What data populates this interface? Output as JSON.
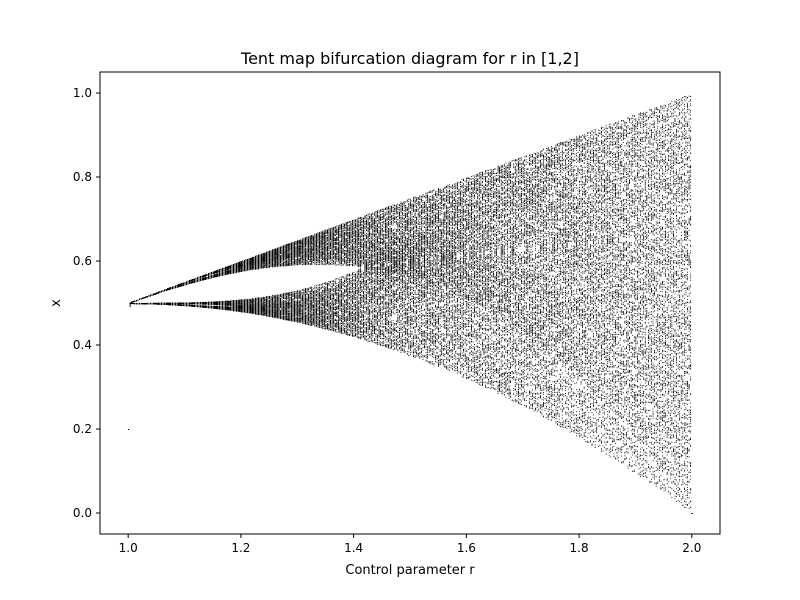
{
  "chart_data": {
    "type": "scatter",
    "title": "Tent map bifurcation diagram for r in [1,2]",
    "xlabel": "Control parameter r",
    "ylabel": "x",
    "xlim": [
      0.95,
      2.05
    ],
    "ylim": [
      -0.05,
      1.05
    ],
    "x_ticks": [
      1.0,
      1.2,
      1.4,
      1.6,
      1.8,
      2.0
    ],
    "y_ticks": [
      0.0,
      0.2,
      0.4,
      0.6,
      0.8,
      1.0
    ],
    "x_tick_labels": [
      "1.0",
      "1.2",
      "1.4",
      "1.6",
      "1.8",
      "2.0"
    ],
    "y_tick_labels": [
      "0.0",
      "0.2",
      "0.4",
      "0.6",
      "0.8",
      "1.0"
    ],
    "grid": false,
    "legend": "none",
    "marker_color": "#000000",
    "map": "tent",
    "r_range": [
      1.0,
      2.0
    ],
    "series": [
      {
        "values_description_points": [
          {
            "r": 1.0,
            "x_min": 0.5,
            "x_max": 0.5
          },
          {
            "r": 1.0,
            "x_min": 0.2,
            "x_max": 0.2
          },
          {
            "r": 1.1,
            "x_min": 0.48,
            "x_max": 0.55
          },
          {
            "r": 1.2,
            "x_min": 0.45,
            "x_max": 0.6
          },
          {
            "r": 1.3,
            "x_min": 0.43,
            "x_max": 0.65
          },
          {
            "r": 1.4,
            "x_min": 0.41,
            "x_max": 0.7
          },
          {
            "r": 1.5,
            "x_min": 0.37,
            "x_max": 0.75
          },
          {
            "r": 1.6,
            "x_min": 0.32,
            "x_max": 0.8
          },
          {
            "r": 1.7,
            "x_min": 0.26,
            "x_max": 0.85
          },
          {
            "r": 1.8,
            "x_min": 0.18,
            "x_max": 0.9
          },
          {
            "r": 1.9,
            "x_min": 0.1,
            "x_max": 0.95
          },
          {
            "r": 2.0,
            "x_min": 0.0,
            "x_max": 1.0
          }
        ]
      }
    ]
  }
}
